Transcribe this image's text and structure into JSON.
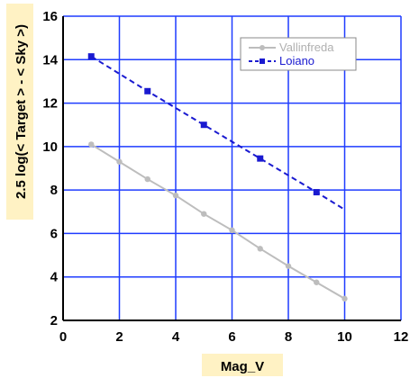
{
  "chart_data": {
    "type": "line",
    "xlabel": "Mag_V",
    "ylabel": "2.5 log(< Target > - < Sky >)",
    "xlim": [
      0,
      12
    ],
    "ylim": [
      2,
      16
    ],
    "xticks": [
      "0",
      "2",
      "4",
      "6",
      "8",
      "10",
      "12"
    ],
    "yticks": [
      "2",
      "4",
      "6",
      "8",
      "10",
      "12",
      "14",
      "16"
    ],
    "grid": true,
    "legend_position": "top-right",
    "colors": {
      "grid": "#1f3cff",
      "axis_title_bg": "#fff2c4",
      "vallinfreda": "#bdbdbd",
      "loiano": "#1a1ad0"
    },
    "series": [
      {
        "name": "Vallinfreda",
        "style": "solid",
        "marker": "circle",
        "x": [
          1,
          2,
          3,
          4,
          5,
          6,
          7,
          8,
          9,
          10
        ],
        "y": [
          10.1,
          9.3,
          8.5,
          7.75,
          6.9,
          6.15,
          5.3,
          4.5,
          3.75,
          3.0
        ]
      },
      {
        "name": "Loiano",
        "style": "dashed",
        "marker": "square",
        "x": [
          1,
          3,
          5,
          7,
          9,
          10
        ],
        "y": [
          14.15,
          12.55,
          11.0,
          9.45,
          7.9,
          7.1
        ]
      }
    ]
  }
}
